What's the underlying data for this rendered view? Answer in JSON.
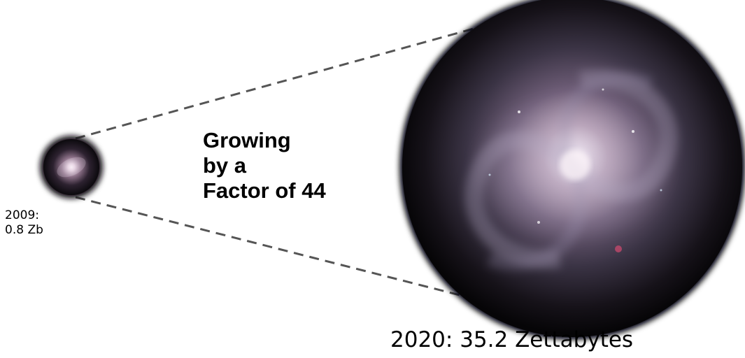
{
  "small_label": {
    "year": "2009:",
    "size": "0.8 Zb"
  },
  "growth_text": {
    "line1": "Growing",
    "line2": "by a",
    "line3": "Factor of 44"
  },
  "big_label": "2020: 35.2 Zettabytes",
  "colors": {
    "background": "#ffffff",
    "dashed_line": "#555555",
    "galaxy_core": "#fff7fb",
    "galaxy_space": "#0b090d",
    "text": "#000000"
  }
}
